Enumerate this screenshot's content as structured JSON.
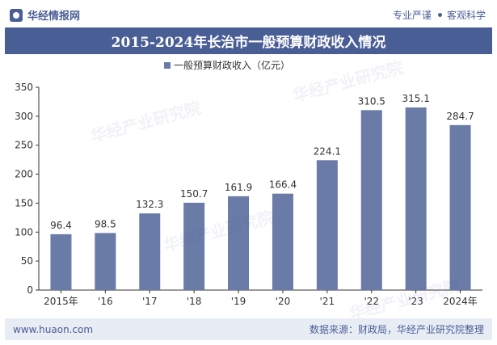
{
  "header": {
    "logo_text": "华经情报网",
    "right_item_1": "专业严谨",
    "right_item_2": "客观科学"
  },
  "title": "2015-2024年长治市一般预算财政收入情况",
  "footer": {
    "url": "www.huaon.com",
    "source": "数据来源：财政局，华经产业研究院整理"
  },
  "watermark": "华经产业研究院",
  "colors": {
    "bar": "#6b7ba8",
    "brand": "#4a5e96"
  },
  "chart_data": {
    "type": "bar",
    "categories": [
      "2015年",
      "'16",
      "'17",
      "'18",
      "'19",
      "'20",
      "'21",
      "'22",
      "'23",
      "2024年"
    ],
    "series": [
      {
        "name": "一般预算财政收入（亿元）",
        "values": [
          96.4,
          98.5,
          132.3,
          150.7,
          161.9,
          166.4,
          224.1,
          310.5,
          315.1,
          284.7
        ]
      }
    ],
    "value_labels": [
      "96.4",
      "98.5",
      "132.3",
      "150.7",
      "161.9",
      "166.4",
      "224.1",
      "310.5",
      "315.1",
      "284.7"
    ],
    "ylim": [
      0,
      350
    ],
    "yticks": [
      0,
      50,
      100,
      150,
      200,
      250,
      300,
      350
    ],
    "legend_position": "top-center",
    "grid": false
  }
}
